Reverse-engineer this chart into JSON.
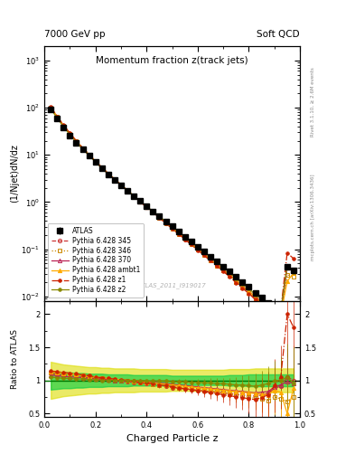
{
  "title_top_left": "7000 GeV pp",
  "title_top_right": "Soft QCD",
  "main_title": "Momentum fraction z(track jets)",
  "xlabel": "Charged Particle z",
  "ylabel_main": "(1/Njet)dN/dz",
  "ylabel_ratio": "Ratio to ATLAS",
  "right_label_top": "Rivet 3.1.10, ≥ 2.6M events",
  "right_label_bottom": "mcplots.cern.ch [arXiv:1306.3436]",
  "watermark": "ATLAS_2011_I919017",
  "xlim": [
    0.0,
    1.0
  ],
  "ylim_main": [
    0.008,
    2000
  ],
  "ylim_ratio": [
    0.45,
    2.2
  ],
  "x_data": [
    0.025,
    0.05,
    0.075,
    0.1,
    0.125,
    0.15,
    0.175,
    0.2,
    0.225,
    0.25,
    0.275,
    0.3,
    0.325,
    0.35,
    0.375,
    0.4,
    0.425,
    0.45,
    0.475,
    0.5,
    0.525,
    0.55,
    0.575,
    0.6,
    0.625,
    0.65,
    0.675,
    0.7,
    0.725,
    0.75,
    0.775,
    0.8,
    0.825,
    0.85,
    0.875,
    0.9,
    0.925,
    0.95,
    0.975
  ],
  "atlas_y": [
    90,
    58,
    38,
    26,
    18,
    13,
    9.5,
    7.0,
    5.2,
    3.9,
    3.0,
    2.3,
    1.75,
    1.35,
    1.05,
    0.82,
    0.64,
    0.5,
    0.39,
    0.305,
    0.238,
    0.186,
    0.146,
    0.114,
    0.089,
    0.07,
    0.055,
    0.043,
    0.034,
    0.026,
    0.02,
    0.016,
    0.012,
    0.0095,
    0.0074,
    0.006,
    0.005,
    0.042,
    0.035
  ],
  "atlas_yerr": [
    2.5,
    1.8,
    1.2,
    0.8,
    0.55,
    0.38,
    0.27,
    0.2,
    0.15,
    0.11,
    0.085,
    0.065,
    0.05,
    0.038,
    0.03,
    0.023,
    0.018,
    0.014,
    0.011,
    0.0085,
    0.0067,
    0.0052,
    0.0041,
    0.0032,
    0.0025,
    0.002,
    0.0016,
    0.0012,
    0.00096,
    0.00075,
    0.0006,
    0.00048,
    0.00037,
    0.0003,
    0.00024,
    0.0002,
    0.00017,
    0.0025,
    0.0022
  ],
  "series": [
    {
      "label": "Pythia 6.428 345",
      "color": "#cc3333",
      "marker": "o",
      "marker_fill": "none",
      "linestyle": "--",
      "ratio": [
        1.1,
        1.09,
        1.08,
        1.07,
        1.06,
        1.05,
        1.04,
        1.03,
        1.02,
        1.01,
        1.0,
        0.99,
        0.98,
        0.97,
        0.96,
        0.95,
        0.94,
        0.92,
        0.91,
        0.89,
        0.88,
        0.87,
        0.86,
        0.85,
        0.84,
        0.83,
        0.82,
        0.81,
        0.8,
        0.79,
        0.78,
        0.77,
        0.76,
        0.78,
        0.8,
        0.88,
        0.91,
        1.05,
        1.0
      ],
      "ratio_err": [
        0.02,
        0.02,
        0.02,
        0.02,
        0.02,
        0.02,
        0.02,
        0.02,
        0.02,
        0.02,
        0.02,
        0.02,
        0.02,
        0.02,
        0.02,
        0.02,
        0.02,
        0.03,
        0.03,
        0.03,
        0.04,
        0.04,
        0.04,
        0.05,
        0.05,
        0.06,
        0.07,
        0.08,
        0.09,
        0.1,
        0.12,
        0.13,
        0.15,
        0.17,
        0.19,
        0.22,
        0.26,
        0.35,
        0.4
      ]
    },
    {
      "label": "Pythia 6.428 346",
      "color": "#cc8800",
      "marker": "s",
      "marker_fill": "none",
      "linestyle": ":",
      "ratio": [
        1.12,
        1.11,
        1.1,
        1.09,
        1.08,
        1.07,
        1.06,
        1.04,
        1.03,
        1.02,
        1.01,
        1.0,
        0.99,
        0.98,
        0.97,
        0.96,
        0.94,
        0.93,
        0.92,
        0.9,
        0.89,
        0.88,
        0.87,
        0.86,
        0.85,
        0.83,
        0.82,
        0.81,
        0.79,
        0.78,
        0.77,
        0.75,
        0.73,
        0.72,
        0.7,
        0.75,
        0.72,
        0.68,
        0.75
      ],
      "ratio_err": [
        0.02,
        0.02,
        0.02,
        0.02,
        0.02,
        0.02,
        0.02,
        0.02,
        0.02,
        0.02,
        0.02,
        0.02,
        0.02,
        0.02,
        0.02,
        0.02,
        0.03,
        0.03,
        0.03,
        0.04,
        0.04,
        0.04,
        0.05,
        0.05,
        0.06,
        0.07,
        0.08,
        0.09,
        0.1,
        0.12,
        0.14,
        0.16,
        0.18,
        0.21,
        0.24,
        0.28,
        0.33,
        0.45,
        0.5
      ]
    },
    {
      "label": "Pythia 6.428 370",
      "color": "#bb2255",
      "marker": "^",
      "marker_fill": "none",
      "linestyle": "-",
      "ratio": [
        1.08,
        1.07,
        1.06,
        1.05,
        1.05,
        1.04,
        1.03,
        1.02,
        1.02,
        1.01,
        1.0,
        1.0,
        0.99,
        0.99,
        0.98,
        0.97,
        0.97,
        0.96,
        0.95,
        0.94,
        0.93,
        0.92,
        0.91,
        0.9,
        0.89,
        0.88,
        0.87,
        0.86,
        0.85,
        0.84,
        0.83,
        0.82,
        0.81,
        0.82,
        0.83,
        0.9,
        0.93,
        0.98,
        0.95
      ],
      "ratio_err": [
        0.02,
        0.02,
        0.02,
        0.02,
        0.02,
        0.02,
        0.02,
        0.02,
        0.02,
        0.02,
        0.02,
        0.02,
        0.02,
        0.02,
        0.02,
        0.02,
        0.02,
        0.03,
        0.03,
        0.03,
        0.04,
        0.04,
        0.05,
        0.05,
        0.06,
        0.07,
        0.08,
        0.09,
        0.1,
        0.12,
        0.14,
        0.16,
        0.19,
        0.22,
        0.26,
        0.3,
        0.36,
        0.5,
        0.55
      ]
    },
    {
      "label": "Pythia 6.428 ambt1",
      "color": "#ffaa00",
      "marker": "^",
      "marker_fill": "full",
      "linestyle": "-",
      "ratio": [
        1.13,
        1.12,
        1.11,
        1.1,
        1.09,
        1.07,
        1.06,
        1.05,
        1.04,
        1.03,
        1.02,
        1.01,
        1.0,
        0.99,
        0.98,
        0.97,
        0.96,
        0.95,
        0.94,
        0.93,
        0.92,
        0.91,
        0.9,
        0.89,
        0.88,
        0.87,
        0.86,
        0.85,
        0.84,
        0.83,
        0.82,
        0.81,
        0.8,
        0.79,
        0.78,
        0.85,
        0.82,
        0.5,
        0.88
      ],
      "ratio_err": [
        0.02,
        0.02,
        0.02,
        0.02,
        0.02,
        0.02,
        0.02,
        0.02,
        0.02,
        0.02,
        0.02,
        0.02,
        0.02,
        0.02,
        0.02,
        0.02,
        0.03,
        0.03,
        0.03,
        0.04,
        0.04,
        0.04,
        0.05,
        0.06,
        0.07,
        0.08,
        0.09,
        0.1,
        0.12,
        0.14,
        0.16,
        0.19,
        0.22,
        0.26,
        0.3,
        0.35,
        0.42,
        0.6,
        0.65
      ]
    },
    {
      "label": "Pythia 6.428 z1",
      "color": "#cc2200",
      "marker": "o",
      "marker_fill": "full",
      "markersize": 2.5,
      "linestyle": "-.",
      "ratio": [
        1.14,
        1.13,
        1.12,
        1.11,
        1.1,
        1.08,
        1.07,
        1.05,
        1.04,
        1.03,
        1.02,
        1.01,
        1.0,
        0.99,
        0.97,
        0.96,
        0.95,
        0.93,
        0.92,
        0.9,
        0.89,
        0.87,
        0.86,
        0.84,
        0.83,
        0.81,
        0.8,
        0.78,
        0.77,
        0.75,
        0.74,
        0.72,
        0.71,
        0.74,
        0.78,
        0.92,
        1.05,
        2.0,
        1.8
      ],
      "ratio_err": [
        0.02,
        0.02,
        0.02,
        0.02,
        0.02,
        0.02,
        0.02,
        0.02,
        0.02,
        0.02,
        0.02,
        0.02,
        0.02,
        0.02,
        0.02,
        0.03,
        0.03,
        0.03,
        0.04,
        0.04,
        0.05,
        0.05,
        0.06,
        0.07,
        0.08,
        0.09,
        0.1,
        0.12,
        0.14,
        0.16,
        0.19,
        0.22,
        0.26,
        0.3,
        0.35,
        0.4,
        0.48,
        0.65,
        0.7
      ]
    },
    {
      "label": "Pythia 6.428 z2",
      "color": "#888800",
      "marker": "o",
      "marker_fill": "full",
      "markersize": 2.5,
      "linestyle": "-",
      "ratio": [
        1.05,
        1.04,
        1.03,
        1.03,
        1.02,
        1.02,
        1.01,
        1.01,
        1.0,
        1.0,
        1.0,
        1.0,
        1.0,
        1.0,
        1.0,
        0.99,
        0.99,
        0.99,
        0.99,
        0.98,
        0.98,
        0.98,
        0.97,
        0.97,
        0.96,
        0.96,
        0.95,
        0.95,
        0.94,
        0.93,
        0.93,
        0.92,
        0.91,
        0.93,
        0.95,
        0.99,
        1.0,
        1.05,
        0.95
      ],
      "ratio_err": [
        0.02,
        0.02,
        0.02,
        0.02,
        0.02,
        0.02,
        0.02,
        0.02,
        0.02,
        0.02,
        0.02,
        0.02,
        0.02,
        0.02,
        0.02,
        0.02,
        0.02,
        0.03,
        0.03,
        0.03,
        0.04,
        0.04,
        0.04,
        0.05,
        0.06,
        0.07,
        0.08,
        0.09,
        0.1,
        0.12,
        0.14,
        0.16,
        0.19,
        0.22,
        0.26,
        0.3,
        0.36,
        0.5,
        0.55
      ]
    }
  ],
  "band_yellow_lo": [
    0.72,
    0.74,
    0.76,
    0.77,
    0.78,
    0.79,
    0.8,
    0.8,
    0.81,
    0.81,
    0.82,
    0.82,
    0.82,
    0.82,
    0.83,
    0.83,
    0.83,
    0.83,
    0.83,
    0.84,
    0.84,
    0.84,
    0.84,
    0.84,
    0.84,
    0.84,
    0.84,
    0.84,
    0.83,
    0.83,
    0.83,
    0.83,
    0.82,
    0.82,
    0.82,
    0.82,
    0.82,
    0.82,
    0.82
  ],
  "band_yellow_hi": [
    1.28,
    1.26,
    1.24,
    1.23,
    1.22,
    1.21,
    1.2,
    1.2,
    1.19,
    1.19,
    1.18,
    1.18,
    1.18,
    1.18,
    1.17,
    1.17,
    1.17,
    1.17,
    1.17,
    1.16,
    1.16,
    1.16,
    1.16,
    1.16,
    1.16,
    1.16,
    1.16,
    1.16,
    1.17,
    1.17,
    1.17,
    1.17,
    1.18,
    1.18,
    1.18,
    1.18,
    1.18,
    1.18,
    1.18
  ],
  "band_green_lo": [
    0.86,
    0.87,
    0.88,
    0.88,
    0.89,
    0.89,
    0.9,
    0.9,
    0.9,
    0.91,
    0.91,
    0.91,
    0.91,
    0.92,
    0.92,
    0.92,
    0.92,
    0.92,
    0.92,
    0.93,
    0.93,
    0.93,
    0.93,
    0.93,
    0.93,
    0.93,
    0.93,
    0.93,
    0.92,
    0.92,
    0.92,
    0.91,
    0.91,
    0.91,
    0.91,
    0.91,
    0.91,
    0.91,
    0.91
  ],
  "band_green_hi": [
    1.14,
    1.13,
    1.12,
    1.12,
    1.11,
    1.11,
    1.1,
    1.1,
    1.1,
    1.09,
    1.09,
    1.09,
    1.09,
    1.08,
    1.08,
    1.08,
    1.08,
    1.08,
    1.08,
    1.07,
    1.07,
    1.07,
    1.07,
    1.07,
    1.07,
    1.07,
    1.07,
    1.07,
    1.08,
    1.08,
    1.08,
    1.09,
    1.09,
    1.09,
    1.09,
    1.09,
    1.09,
    1.09,
    1.09
  ]
}
